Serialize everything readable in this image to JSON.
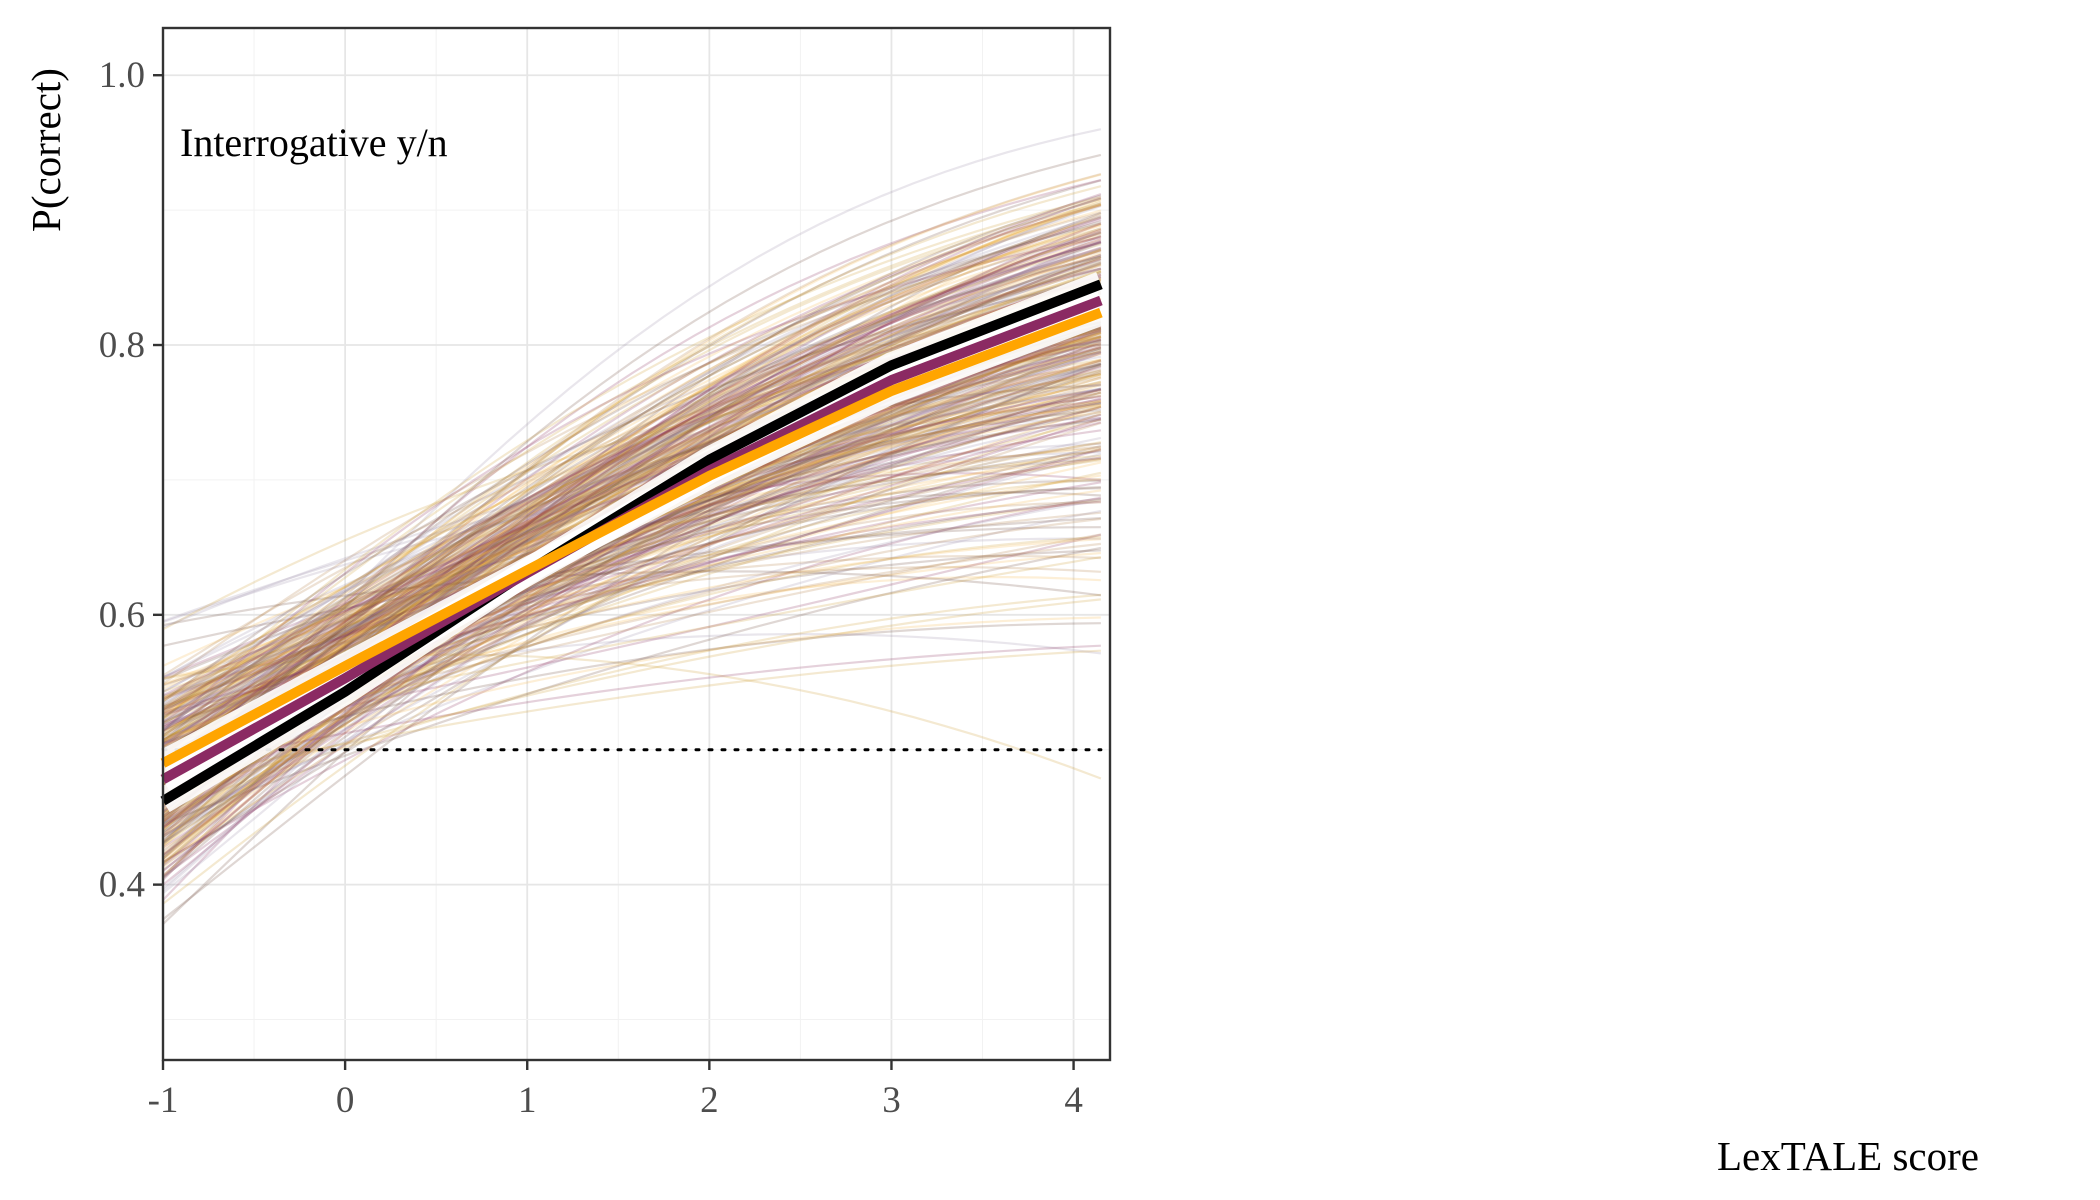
{
  "chart_data": {
    "type": "line",
    "panel_label": "Interrogative y/n",
    "xlabel": "LexTALE score",
    "ylabel": "P(correct)",
    "xlim": [
      -1,
      4.2
    ],
    "ylim": [
      0.27,
      1.035
    ],
    "x_ticks": [
      -1,
      0,
      1,
      2,
      3,
      4
    ],
    "x_tick_labels": [
      "-1",
      "0",
      "1",
      "2",
      "3",
      "4"
    ],
    "y_ticks": [
      0.4,
      0.6,
      0.8,
      1.0
    ],
    "y_tick_labels": [
      "0.4",
      "0.6",
      "0.8",
      "1.0"
    ],
    "grid": true,
    "reference_line": {
      "y": 0.5,
      "style": "dotted"
    },
    "posterior_draws": {
      "count": 400,
      "colors": [
        "#cc9a2c",
        "#f4b44a",
        "#8a2e5c",
        "#9a8fa8",
        "#6e4a3a",
        "#b07a40"
      ],
      "opacity": 0.22
    },
    "series": [
      {
        "color": "#000000",
        "x": [
          -1,
          0,
          1,
          2,
          3,
          4.15
        ],
        "y": [
          0.462,
          0.543,
          0.632,
          0.715,
          0.785,
          0.845
        ]
      },
      {
        "color": "#8b2a63",
        "x": [
          -1,
          0,
          1,
          2,
          3,
          4.15
        ],
        "y": [
          0.478,
          0.553,
          0.631,
          0.707,
          0.774,
          0.833
        ]
      },
      {
        "color": "#ffa500",
        "x": [
          -1,
          0,
          1,
          2,
          3,
          4.15
        ],
        "y": [
          0.49,
          0.562,
          0.633,
          0.703,
          0.766,
          0.824
        ]
      }
    ]
  }
}
